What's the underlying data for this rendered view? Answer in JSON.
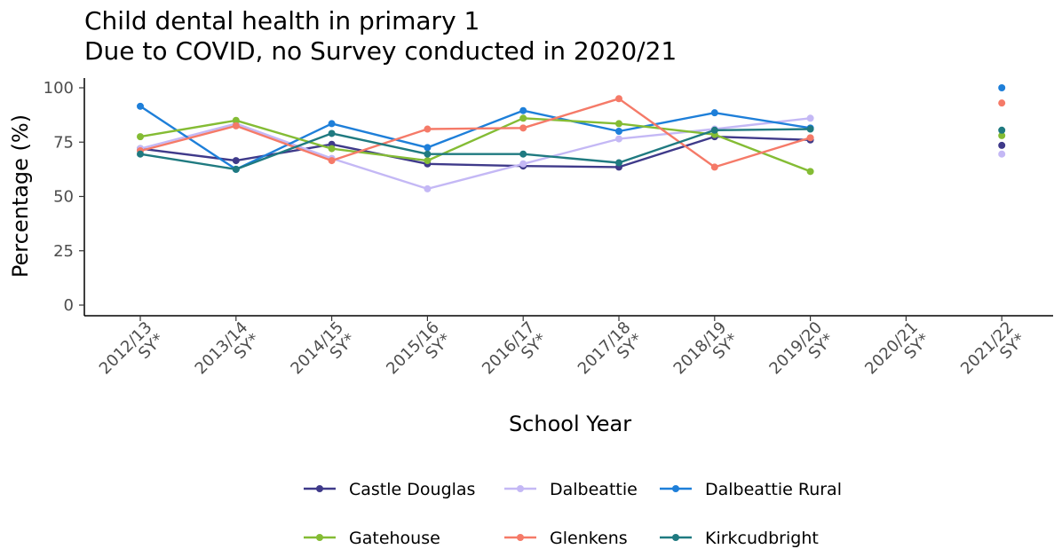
{
  "chart_data": {
    "type": "line",
    "title": "Child dental health in primary 1",
    "subtitle": "Due to COVID, no Survey conducted in 2020/21",
    "xlabel": "School Year",
    "ylabel": "Percentage (%)",
    "categories": [
      "2012/13\nSY*",
      "2013/14\nSY*",
      "2014/15\nSY*",
      "2015/16\nSY*",
      "2016/17\nSY*",
      "2017/18\nSY*",
      "2018/19\nSY*",
      "2019/20\nSY*",
      "2020/21\nSY*",
      "2021/22\nSY*"
    ],
    "ylim": [
      0,
      100
    ],
    "yticks": [
      0,
      25,
      50,
      75,
      100
    ],
    "grid": false,
    "legend_position": "bottom",
    "series": [
      {
        "name": "Castle Douglas",
        "color": "#3f3a8a",
        "values": [
          72,
          66.5,
          74,
          65,
          64,
          63.5,
          77.5,
          76,
          null,
          73.5
        ]
      },
      {
        "name": "Dalbeattie",
        "color": "#c4b8f5",
        "values": [
          72,
          83.5,
          67.5,
          53.5,
          65,
          76.5,
          81,
          86,
          null,
          69.5
        ]
      },
      {
        "name": "Dalbeattie Rural",
        "color": "#1e7fd9",
        "values": [
          91.5,
          62.5,
          83.5,
          72.5,
          89.5,
          80,
          88.5,
          81.5,
          null,
          100
        ]
      },
      {
        "name": "Gatehouse",
        "color": "#84bc34",
        "values": [
          77.5,
          85,
          72,
          66.5,
          86,
          83.5,
          78.5,
          61.5,
          null,
          78
        ]
      },
      {
        "name": "Glenkens",
        "color": "#f57a68",
        "values": [
          71,
          82.5,
          66.5,
          81,
          81.5,
          95,
          63.5,
          77,
          null,
          93
        ]
      },
      {
        "name": "Kirkcudbright",
        "color": "#1f7a80",
        "values": [
          69.5,
          62.5,
          79,
          69.5,
          69.5,
          65.5,
          80.5,
          81,
          null,
          80.5
        ]
      }
    ]
  }
}
